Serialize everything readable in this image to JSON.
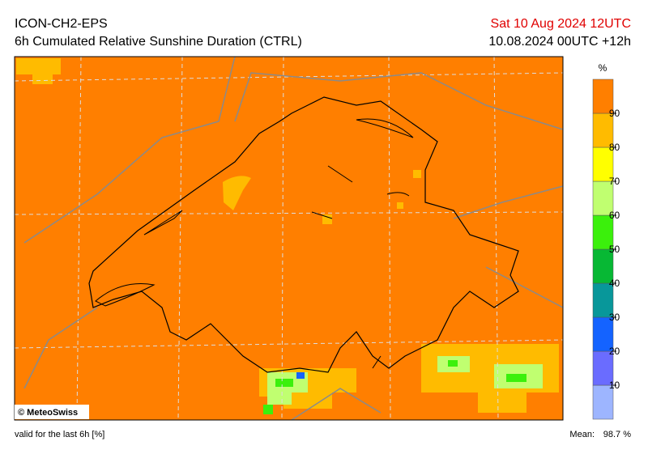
{
  "header": {
    "model": "ICON-CH2-EPS",
    "title": "6h Cumulated Relative Sunshine Duration (CTRL)",
    "valid_time": "Sat 10 Aug 2024 12UTC",
    "run": "10.08.2024 00UTC +12h"
  },
  "colorbar": {
    "unit": "%",
    "ticks": [
      10,
      20,
      30,
      40,
      50,
      60,
      70,
      80,
      90
    ],
    "colors": [
      "#9db5ff",
      "#6a6cff",
      "#1463ff",
      "#08979a",
      "#07b834",
      "#3bf00c",
      "#c0ff70",
      "#ffff00",
      "#ffbb00",
      "#ff7f00"
    ]
  },
  "map": {
    "copyright": "© MeteoSwiss"
  },
  "footer": {
    "note": "valid for the last 6h [%]",
    "mean_label": "Mean:",
    "mean_value": "98.7 %"
  }
}
